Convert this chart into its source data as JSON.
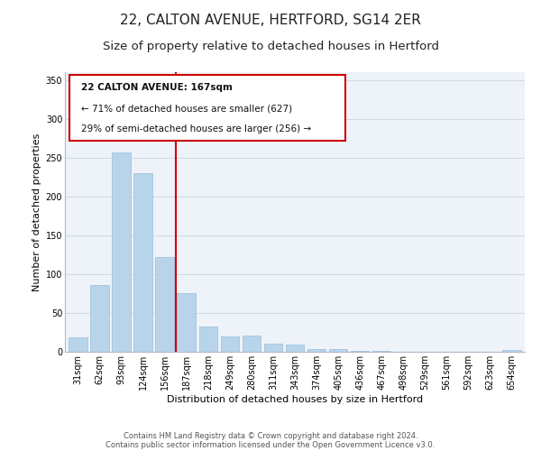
{
  "title": "22, CALTON AVENUE, HERTFORD, SG14 2ER",
  "subtitle": "Size of property relative to detached houses in Hertford",
  "xlabel": "Distribution of detached houses by size in Hertford",
  "ylabel": "Number of detached properties",
  "categories": [
    "31sqm",
    "62sqm",
    "93sqm",
    "124sqm",
    "156sqm",
    "187sqm",
    "218sqm",
    "249sqm",
    "280sqm",
    "311sqm",
    "343sqm",
    "374sqm",
    "405sqm",
    "436sqm",
    "467sqm",
    "498sqm",
    "529sqm",
    "561sqm",
    "592sqm",
    "623sqm",
    "654sqm"
  ],
  "values": [
    19,
    86,
    257,
    230,
    122,
    76,
    33,
    20,
    21,
    11,
    9,
    4,
    4,
    1,
    1,
    0,
    0,
    0,
    0,
    0,
    2
  ],
  "bar_color": "#b8d4ea",
  "bar_edge_color": "#9bbdd8",
  "vline_x": 4.5,
  "vline_color": "#cc0000",
  "annotation_title": "22 CALTON AVENUE: 167sqm",
  "annotation_line1": "← 71% of detached houses are smaller (627)",
  "annotation_line2": "29% of semi-detached houses are larger (256) →",
  "annotation_box_color": "#ffffff",
  "annotation_box_edge_color": "#cc0000",
  "ylim": [
    0,
    360
  ],
  "yticks": [
    0,
    50,
    100,
    150,
    200,
    250,
    300,
    350
  ],
  "footer1": "Contains HM Land Registry data © Crown copyright and database right 2024.",
  "footer2": "Contains public sector information licensed under the Open Government Licence v3.0.",
  "title_fontsize": 11,
  "subtitle_fontsize": 9.5,
  "axis_label_fontsize": 8,
  "tick_fontsize": 7,
  "footer_fontsize": 6
}
